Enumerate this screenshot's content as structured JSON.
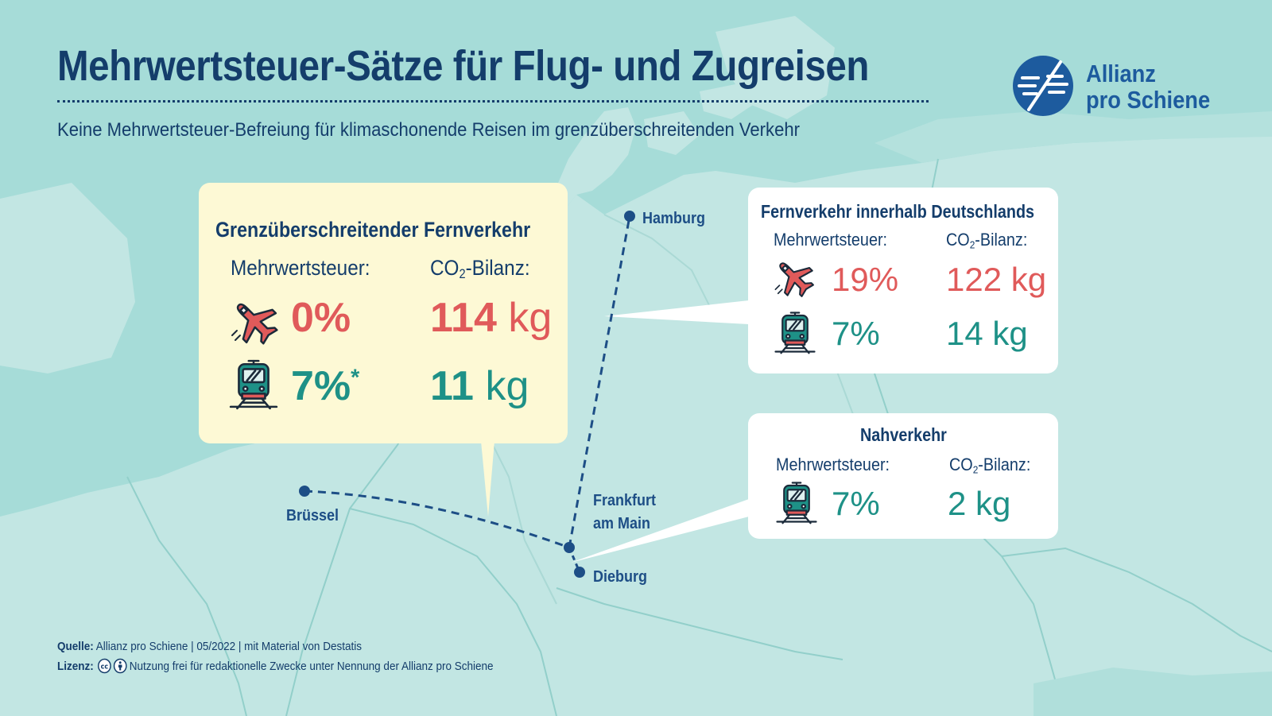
{
  "header": {
    "title": "Mehrwertsteuer-Sätze für Flug- und Zugreisen",
    "subtitle": "Keine Mehrwertsteuer-Befreiung für klimaschonende Reisen im grenzüberschreitenden Verkehr",
    "logo_line1": "Allianz",
    "logo_line2": "pro Schiene"
  },
  "cities": {
    "hamburg": "Hamburg",
    "bruessel": "Brüssel",
    "frankfurt_line1": "Frankfurt",
    "frankfurt_line2": "am Main",
    "dieburg": "Dieburg"
  },
  "panel_cross_border": {
    "title": "Grenzüberschreitender Fernverkehr",
    "vat_label": "Mehrwertsteuer:",
    "co2_label_prefix": "CO",
    "co2_label_sub": "2",
    "co2_label_suffix": "-Bilanz:",
    "plane_vat": "0%",
    "plane_co2_value": "114",
    "plane_co2_unit": "kg",
    "train_vat": "7%",
    "train_vat_note": "*",
    "train_co2_value": "11",
    "train_co2_unit": "kg"
  },
  "panel_domestic": {
    "title": "Fernverkehr innerhalb Deutschlands",
    "vat_label": "Mehrwertsteuer:",
    "co2_label_prefix": "CO",
    "co2_label_sub": "2",
    "co2_label_suffix": "-Bilanz:",
    "plane_vat": "19%",
    "plane_co2": "122 kg",
    "train_vat": "7%",
    "train_co2": "14 kg"
  },
  "panel_local": {
    "title": "Nahverkehr",
    "vat_label": "Mehrwertsteuer:",
    "co2_label_prefix": "CO",
    "co2_label_sub": "2",
    "co2_label_suffix": "-Bilanz:",
    "train_vat": "7%",
    "train_co2": "2 kg"
  },
  "footer": {
    "source_label": "Quelle:",
    "source_text": "Allianz pro Schiene | 05/2022 | mit Material von Destatis",
    "license_label": "Lizenz:",
    "license_text": "Nutzung frei für redaktionelle Zwecke unter Nennung der Allianz pro Schiene"
  },
  "colors": {
    "sea": "#a6dcd8",
    "land": "#c2e6e3",
    "navy": "#143d6b",
    "red": "#e05a5a",
    "teal": "#1e9187",
    "panel_yellow": "#fdf9d5"
  },
  "icons": [
    "plane-icon",
    "train-icon",
    "logo-icon",
    "cc-icon",
    "attribution-icon"
  ]
}
